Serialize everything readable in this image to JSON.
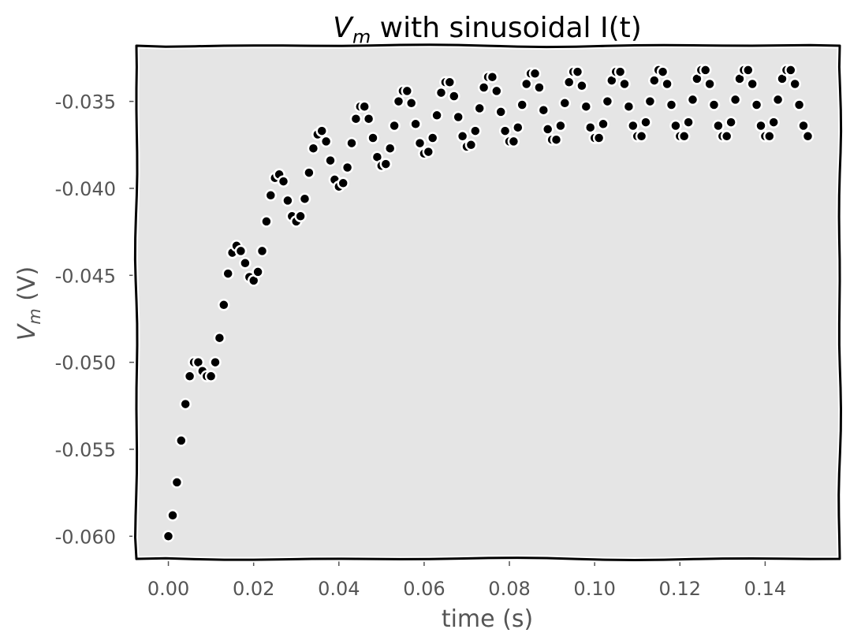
{
  "chart_data": {
    "type": "scatter",
    "title_main": "V",
    "title_sub": "m",
    "title_rest": " with sinusoidal I(t)",
    "xlabel": "time (s)",
    "ylabel_main": "V",
    "ylabel_sub": "m",
    "ylabel_rest": " (V)",
    "xlim": [
      -0.0075,
      0.1575
    ],
    "ylim": [
      -0.0613,
      -0.0318
    ],
    "x_ticks": [
      0.0,
      0.02,
      0.04,
      0.06,
      0.08,
      0.1,
      0.12,
      0.14
    ],
    "x_tick_labels": [
      "0.00",
      "0.02",
      "0.04",
      "0.06",
      "0.08",
      "0.10",
      "0.12",
      "0.14"
    ],
    "y_ticks": [
      -0.06,
      -0.055,
      -0.05,
      -0.045,
      -0.04,
      -0.035
    ],
    "y_tick_labels": [
      "-0.060",
      "-0.055",
      "-0.050",
      "-0.045",
      "-0.040",
      "-0.035"
    ],
    "grid": false,
    "series": [
      {
        "x": [
          0.0,
          0.001,
          0.002,
          0.003,
          0.004,
          0.005,
          0.006,
          0.007,
          0.008,
          0.009,
          0.01,
          0.011,
          0.012,
          0.013,
          0.014,
          0.015,
          0.016,
          0.017,
          0.018,
          0.019,
          0.02,
          0.021,
          0.022,
          0.023,
          0.024,
          0.025,
          0.026,
          0.027,
          0.028,
          0.029,
          0.03,
          0.031,
          0.032,
          0.033,
          0.034,
          0.035,
          0.036,
          0.037,
          0.038,
          0.039,
          0.04,
          0.041,
          0.042,
          0.043,
          0.044,
          0.045,
          0.046,
          0.047,
          0.048,
          0.049,
          0.05,
          0.051,
          0.052,
          0.053,
          0.054,
          0.055,
          0.056,
          0.057,
          0.058,
          0.059,
          0.06,
          0.061,
          0.062,
          0.063,
          0.064,
          0.065,
          0.066,
          0.067,
          0.068,
          0.069,
          0.07,
          0.071,
          0.072,
          0.073,
          0.074,
          0.075,
          0.076,
          0.077,
          0.078,
          0.079,
          0.08,
          0.081,
          0.082,
          0.083,
          0.084,
          0.085,
          0.086,
          0.087,
          0.088,
          0.089,
          0.09,
          0.091,
          0.092,
          0.093,
          0.094,
          0.095,
          0.096,
          0.097,
          0.098,
          0.099,
          0.1,
          0.101,
          0.102,
          0.103,
          0.104,
          0.105,
          0.106,
          0.107,
          0.108,
          0.109,
          0.11,
          0.111,
          0.112,
          0.113,
          0.114,
          0.115,
          0.116,
          0.117,
          0.118,
          0.119,
          0.12,
          0.121,
          0.122,
          0.123,
          0.124,
          0.125,
          0.126,
          0.127,
          0.128,
          0.129,
          0.13,
          0.131,
          0.132,
          0.133,
          0.134,
          0.135,
          0.136,
          0.137,
          0.138,
          0.139,
          0.14,
          0.141,
          0.142,
          0.143,
          0.144,
          0.145,
          0.146,
          0.147,
          0.148,
          0.149,
          0.15
        ],
        "y": [
          -0.06,
          -0.0588,
          -0.0569,
          -0.0545,
          -0.0524,
          -0.0508,
          -0.05,
          -0.05,
          -0.0505,
          -0.0508,
          -0.0508,
          -0.05,
          -0.0486,
          -0.0467,
          -0.0449,
          -0.0437,
          -0.0433,
          -0.0436,
          -0.0443,
          -0.0451,
          -0.0453,
          -0.0448,
          -0.0436,
          -0.0419,
          -0.0404,
          -0.0394,
          -0.0392,
          -0.0396,
          -0.0407,
          -0.0416,
          -0.0419,
          -0.0416,
          -0.0406,
          -0.0391,
          -0.0377,
          -0.0369,
          -0.0367,
          -0.0373,
          -0.0384,
          -0.0395,
          -0.0399,
          -0.0397,
          -0.0388,
          -0.0374,
          -0.036,
          -0.0353,
          -0.0353,
          -0.036,
          -0.0371,
          -0.0382,
          -0.0387,
          -0.0386,
          -0.0377,
          -0.0364,
          -0.035,
          -0.0344,
          -0.0344,
          -0.0351,
          -0.0363,
          -0.0374,
          -0.038,
          -0.0379,
          -0.0371,
          -0.0358,
          -0.0345,
          -0.0339,
          -0.0339,
          -0.0347,
          -0.0359,
          -0.037,
          -0.0376,
          -0.0375,
          -0.0367,
          -0.0354,
          -0.0342,
          -0.0336,
          -0.0336,
          -0.0344,
          -0.0356,
          -0.0367,
          -0.0373,
          -0.0373,
          -0.0365,
          -0.0352,
          -0.034,
          -0.0334,
          -0.0334,
          -0.0342,
          -0.0355,
          -0.0366,
          -0.0372,
          -0.0372,
          -0.0364,
          -0.0351,
          -0.0339,
          -0.0333,
          -0.0333,
          -0.0341,
          -0.0353,
          -0.0365,
          -0.0371,
          -0.0371,
          -0.0363,
          -0.035,
          -0.0338,
          -0.0333,
          -0.0333,
          -0.034,
          -0.0353,
          -0.0364,
          -0.037,
          -0.037,
          -0.0362,
          -0.035,
          -0.0338,
          -0.0332,
          -0.0333,
          -0.034,
          -0.0352,
          -0.0364,
          -0.037,
          -0.037,
          -0.0362,
          -0.0349,
          -0.0337,
          -0.0332,
          -0.0332,
          -0.034,
          -0.0352,
          -0.0364,
          -0.037,
          -0.037,
          -0.0362,
          -0.0349,
          -0.0337,
          -0.0332,
          -0.0332,
          -0.034,
          -0.0352,
          -0.0364,
          -0.037,
          -0.037,
          -0.0362,
          -0.0349,
          -0.0337,
          -0.0332,
          -0.0332,
          -0.034,
          -0.0352,
          -0.0364,
          -0.037
        ]
      }
    ],
    "marker_color": "#000000",
    "marker_edge_color": "#ffffff",
    "plot_background": "#e5e5e5"
  }
}
